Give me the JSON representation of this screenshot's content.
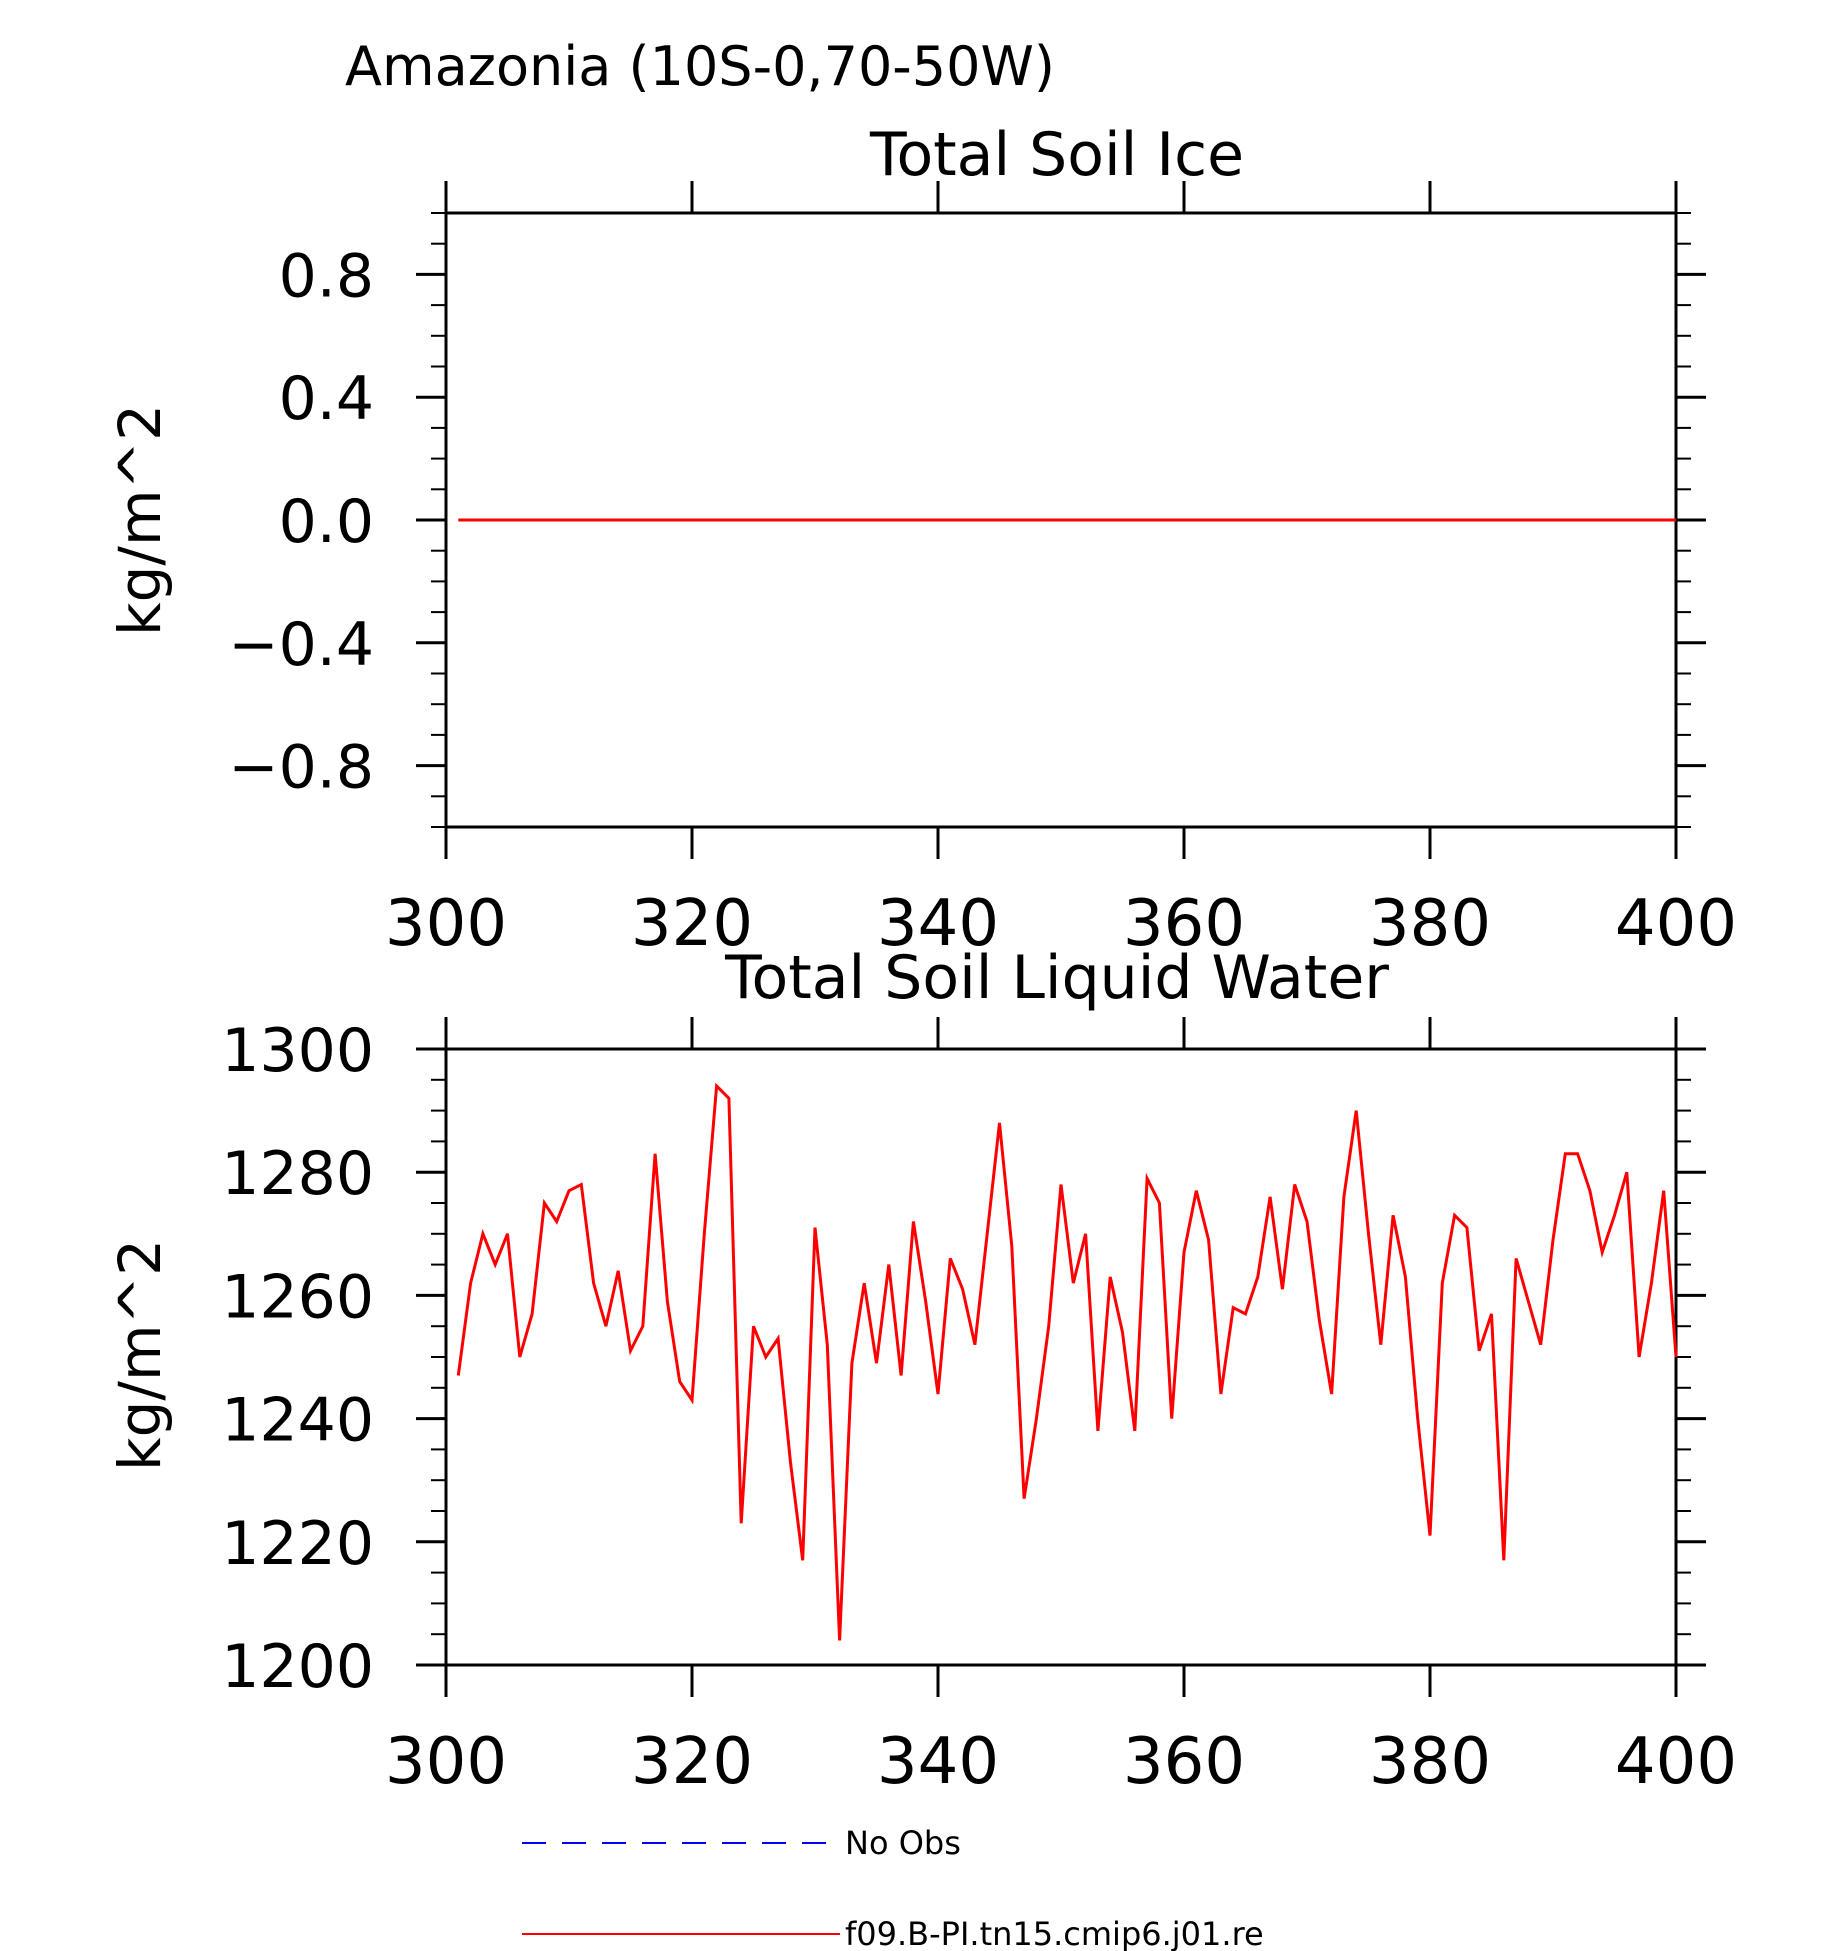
{
  "figure_title": "Amazonia (10S-0,70-50W)",
  "colors": {
    "model": "#ff0000",
    "obs": "#0000ff",
    "axis": "#000000"
  },
  "legend": [
    {
      "label": "No Obs",
      "color": "#0000ff",
      "style": "dashed"
    },
    {
      "label": "f09.B-PI.tn15.cmip6.j01.re",
      "color": "#ff0000",
      "style": "solid"
    }
  ],
  "chart_data": [
    {
      "type": "line",
      "title": "Total Soil Ice",
      "ylabel": "kg/m^2",
      "xlabel": "",
      "xlim": [
        300,
        400
      ],
      "ylim": [
        -1.0,
        1.0
      ],
      "xticks": [
        300,
        320,
        340,
        360,
        380,
        400
      ],
      "yticks": [
        -0.8,
        -0.4,
        0.0,
        0.4,
        0.8
      ],
      "ytick_labels": [
        "−0.8",
        "−0.4",
        "0.0",
        "0.4",
        "0.8"
      ],
      "series": [
        {
          "name": "f09.B-PI.tn15.cmip6.j01.re",
          "color": "#ff0000",
          "x": [
            301,
            400
          ],
          "y": [
            0.0,
            0.0
          ]
        }
      ]
    },
    {
      "type": "line",
      "title": "Total Soil Liquid Water",
      "ylabel": "kg/m^2",
      "xlabel": "",
      "xlim": [
        300,
        400
      ],
      "ylim": [
        1200,
        1300
      ],
      "xticks": [
        300,
        320,
        340,
        360,
        380,
        400
      ],
      "yticks": [
        1200,
        1220,
        1240,
        1260,
        1280,
        1300
      ],
      "ytick_labels": [
        "1200",
        "1220",
        "1240",
        "1260",
        "1280",
        "1300"
      ],
      "series": [
        {
          "name": "f09.B-PI.tn15.cmip6.j01.re",
          "color": "#ff0000",
          "x": [
            301,
            302,
            303,
            304,
            305,
            306,
            307,
            308,
            309,
            310,
            311,
            312,
            313,
            314,
            315,
            316,
            317,
            318,
            319,
            320,
            321,
            322,
            323,
            324,
            325,
            326,
            327,
            328,
            329,
            330,
            331,
            332,
            333,
            334,
            335,
            336,
            337,
            338,
            339,
            340,
            341,
            342,
            343,
            344,
            345,
            346,
            347,
            348,
            349,
            350,
            351,
            352,
            353,
            354,
            355,
            356,
            357,
            358,
            359,
            360,
            361,
            362,
            363,
            364,
            365,
            366,
            367,
            368,
            369,
            370,
            371,
            372,
            373,
            374,
            375,
            376,
            377,
            378,
            379,
            380,
            381,
            382,
            383,
            384,
            385,
            386,
            387,
            388,
            389,
            390,
            391,
            392,
            393,
            394,
            395,
            396,
            397,
            398,
            399,
            400
          ],
          "y": [
            1247,
            1262,
            1270,
            1265,
            1270,
            1250,
            1257,
            1275,
            1272,
            1277,
            1278,
            1262,
            1255,
            1264,
            1251,
            1255,
            1283,
            1259,
            1246,
            1243,
            1270,
            1294,
            1292,
            1223,
            1255,
            1250,
            1253,
            1233,
            1217,
            1271,
            1252,
            1204,
            1249,
            1262,
            1249,
            1265,
            1247,
            1272,
            1259,
            1244,
            1266,
            1261,
            1252,
            1270,
            1288,
            1268,
            1227,
            1240,
            1255,
            1278,
            1262,
            1270,
            1238,
            1263,
            1254,
            1238,
            1279,
            1275,
            1240,
            1267,
            1277,
            1269,
            1244,
            1258,
            1257,
            1263,
            1276,
            1261,
            1278,
            1272,
            1256,
            1244,
            1276,
            1290,
            1270,
            1252,
            1273,
            1263,
            1240,
            1221,
            1262,
            1273,
            1271,
            1251,
            1257,
            1217,
            1266,
            1259,
            1252,
            1269,
            1283,
            1283,
            1277,
            1267,
            1273,
            1280,
            1250,
            1262,
            1277,
            1250
          ]
        }
      ]
    }
  ]
}
